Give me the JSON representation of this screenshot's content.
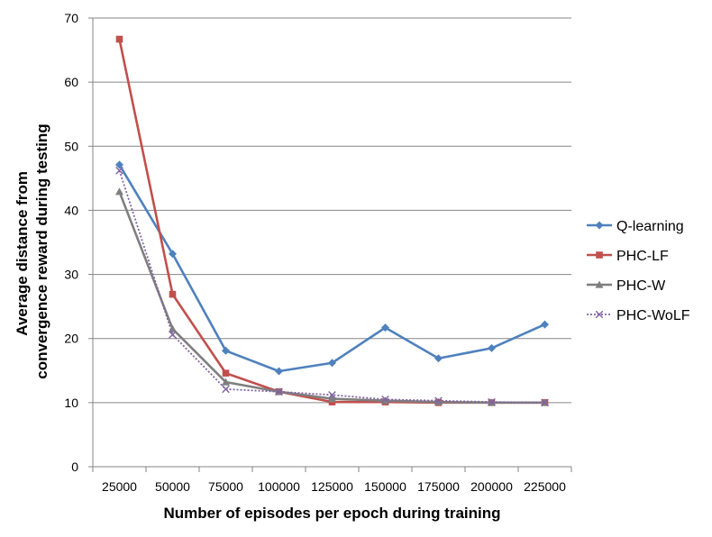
{
  "chart_data": {
    "type": "line",
    "title": "",
    "xlabel": "Number of episodes per epoch during training",
    "ylabel": "Average distance from convergence reward during testing",
    "ylabel_lines": [
      "Average distance from",
      "convergence reward during testing"
    ],
    "categories": [
      "25000",
      "50000",
      "75000",
      "100000",
      "125000",
      "150000",
      "175000",
      "200000",
      "225000"
    ],
    "yticks": [
      "0",
      "10",
      "20",
      "30",
      "40",
      "50",
      "60",
      "70"
    ],
    "ylim": [
      0,
      70
    ],
    "grid": true,
    "legend_position": "right",
    "series": [
      {
        "name": "Q-learning",
        "color": "#4F81BD",
        "marker": "diamond",
        "dash": "solid",
        "values": [
          47.1,
          33.2,
          18.1,
          14.9,
          16.2,
          21.7,
          16.9,
          18.5,
          22.2
        ]
      },
      {
        "name": "PHC-LF",
        "color": "#C0504D",
        "marker": "square",
        "dash": "solid",
        "values": [
          66.7,
          26.9,
          14.6,
          11.7,
          10.1,
          10.1,
          10.0,
          10.0,
          10.0
        ]
      },
      {
        "name": "PHC-W",
        "color": "#7F7F7F",
        "marker": "triangle",
        "dash": "solid",
        "values": [
          42.9,
          21.5,
          13.2,
          11.7,
          10.6,
          10.3,
          10.1,
          10.0,
          10.0
        ]
      },
      {
        "name": "PHC-WoLF",
        "color": "#8064A2",
        "marker": "x",
        "dash": "dotted",
        "values": [
          46.2,
          20.6,
          12.1,
          11.7,
          11.2,
          10.5,
          10.3,
          10.1,
          10.0
        ]
      }
    ]
  }
}
